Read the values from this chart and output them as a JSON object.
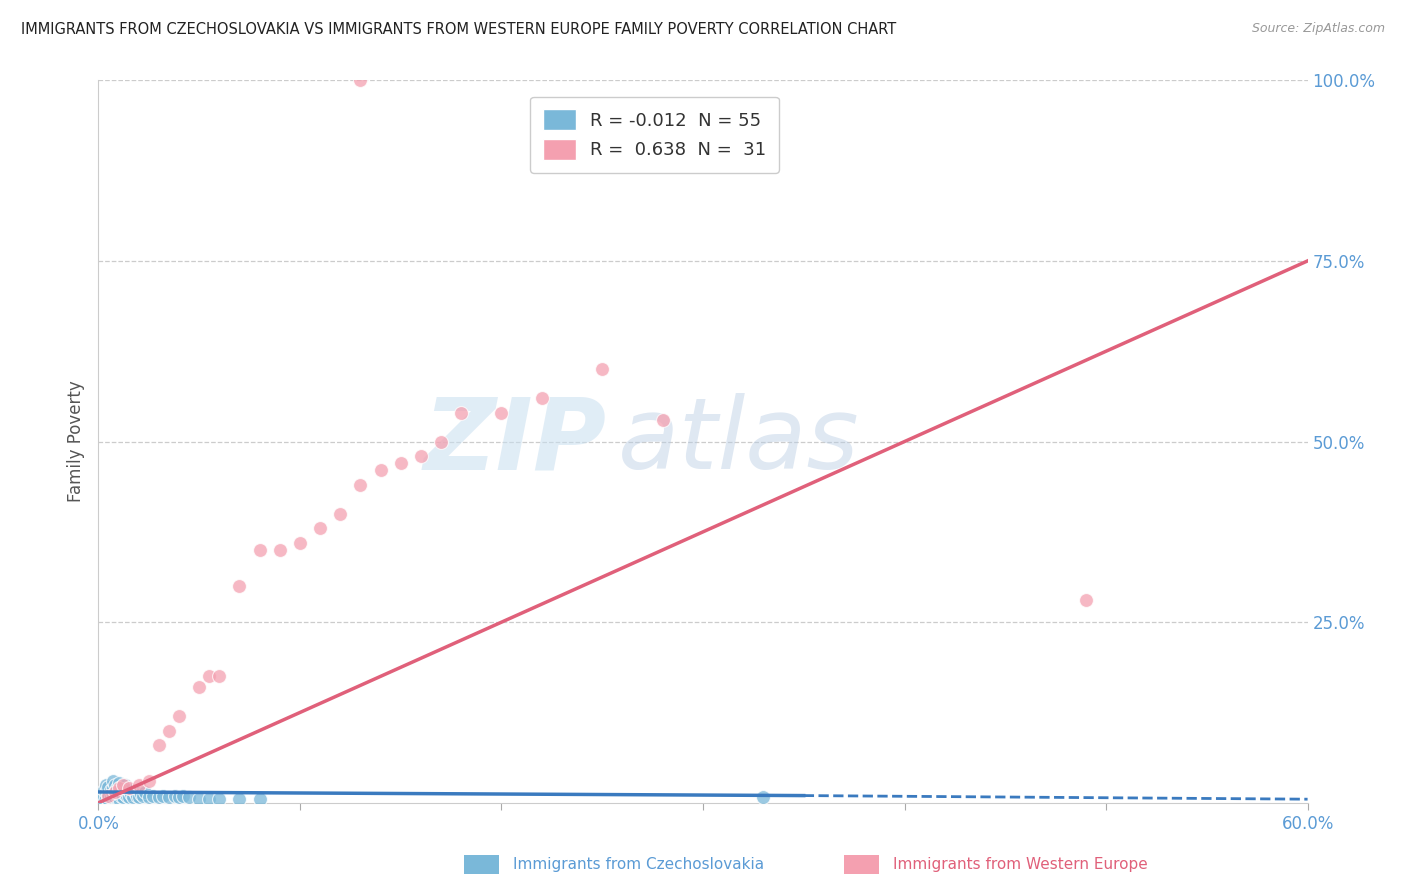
{
  "title": "IMMIGRANTS FROM CZECHOSLOVAKIA VS IMMIGRANTS FROM WESTERN EUROPE FAMILY POVERTY CORRELATION CHART",
  "source": "Source: ZipAtlas.com",
  "ylabel": "Family Poverty",
  "xlim": [
    0.0,
    0.6
  ],
  "ylim": [
    0.0,
    1.0
  ],
  "yticks_right": [
    0.0,
    0.25,
    0.5,
    0.75,
    1.0
  ],
  "ytick_labels_right": [
    "",
    "25.0%",
    "50.0%",
    "75.0%",
    "100.0%"
  ],
  "R_blue": -0.012,
  "N_blue": 55,
  "R_pink": 0.638,
  "N_pink": 31,
  "blue_color": "#7ab8d9",
  "pink_color": "#f4a0b0",
  "blue_line_color": "#3a7abf",
  "pink_line_color": "#e0607a",
  "legend_label_blue": "Immigrants from Czechoslovakia",
  "legend_label_pink": "Immigrants from Western Europe",
  "blue_scatter_x": [
    0.002,
    0.003,
    0.003,
    0.004,
    0.004,
    0.004,
    0.005,
    0.005,
    0.005,
    0.006,
    0.006,
    0.007,
    0.007,
    0.007,
    0.008,
    0.008,
    0.008,
    0.009,
    0.009,
    0.01,
    0.01,
    0.01,
    0.011,
    0.011,
    0.012,
    0.012,
    0.013,
    0.013,
    0.014,
    0.014,
    0.015,
    0.015,
    0.016,
    0.017,
    0.018,
    0.019,
    0.02,
    0.021,
    0.022,
    0.023,
    0.025,
    0.027,
    0.03,
    0.032,
    0.035,
    0.038,
    0.04,
    0.042,
    0.045,
    0.05,
    0.055,
    0.06,
    0.07,
    0.08,
    0.33
  ],
  "blue_scatter_y": [
    0.005,
    0.01,
    0.018,
    0.008,
    0.015,
    0.025,
    0.005,
    0.012,
    0.022,
    0.008,
    0.018,
    0.01,
    0.02,
    0.03,
    0.008,
    0.015,
    0.025,
    0.01,
    0.02,
    0.005,
    0.015,
    0.028,
    0.01,
    0.022,
    0.008,
    0.018,
    0.012,
    0.025,
    0.01,
    0.02,
    0.008,
    0.018,
    0.012,
    0.008,
    0.015,
    0.01,
    0.008,
    0.012,
    0.01,
    0.015,
    0.008,
    0.01,
    0.008,
    0.01,
    0.008,
    0.01,
    0.008,
    0.01,
    0.008,
    0.005,
    0.005,
    0.005,
    0.005,
    0.005,
    0.008
  ],
  "pink_scatter_x": [
    0.005,
    0.008,
    0.01,
    0.012,
    0.015,
    0.02,
    0.025,
    0.03,
    0.035,
    0.04,
    0.05,
    0.055,
    0.06,
    0.07,
    0.08,
    0.09,
    0.1,
    0.11,
    0.12,
    0.13,
    0.14,
    0.15,
    0.16,
    0.17,
    0.18,
    0.2,
    0.22,
    0.25,
    0.28,
    0.49,
    0.13
  ],
  "pink_scatter_y": [
    0.01,
    0.015,
    0.02,
    0.025,
    0.02,
    0.025,
    0.03,
    0.08,
    0.1,
    0.12,
    0.16,
    0.175,
    0.175,
    0.3,
    0.35,
    0.35,
    0.36,
    0.38,
    0.4,
    0.44,
    0.46,
    0.47,
    0.48,
    0.5,
    0.54,
    0.54,
    0.56,
    0.6,
    0.53,
    0.28,
    1.0
  ],
  "blue_line_x": [
    0.0,
    0.35
  ],
  "blue_line_y": [
    0.015,
    0.01
  ],
  "pink_line_x": [
    0.0,
    0.6
  ],
  "pink_line_y": [
    0.0,
    0.75
  ]
}
